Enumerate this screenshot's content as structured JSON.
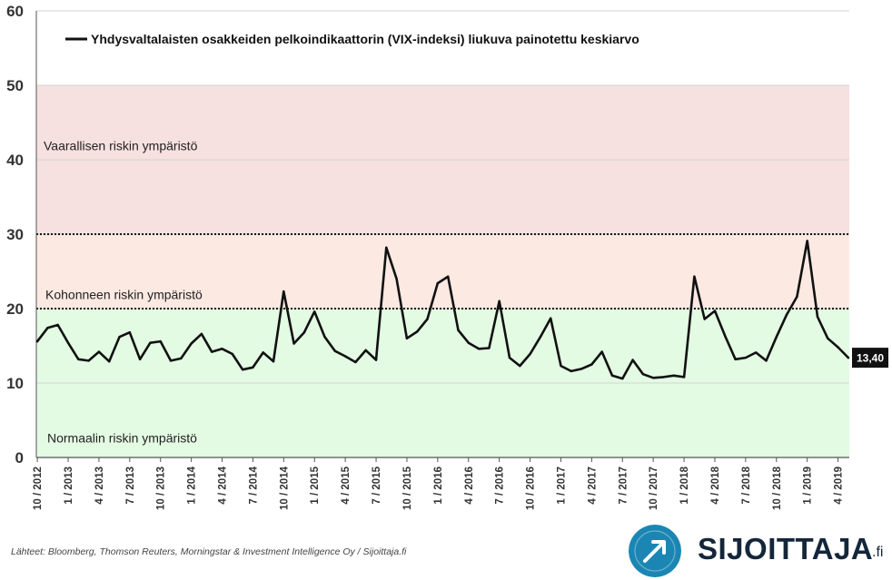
{
  "chart_data": {
    "type": "line",
    "title": "",
    "xlabel": "",
    "ylabel": "",
    "ylim": [
      0,
      60
    ],
    "yticks": [
      0,
      10,
      20,
      30,
      40,
      50,
      60
    ],
    "xlim": [
      "2012-10",
      "2019-05"
    ],
    "xtick_labels": [
      "10 / 2012",
      "1 / 2013",
      "4 / 2013",
      "7 / 2013",
      "10 / 2013",
      "1 / 2014",
      "4 / 2014",
      "7 / 2014",
      "10 / 2014",
      "1 / 2015",
      "4 / 2015",
      "7 / 2015",
      "10 / 2015",
      "1 / 2016",
      "4 / 2016",
      "7 / 2016",
      "10 / 2016",
      "1 / 2017",
      "4 / 2017",
      "7 / 2017",
      "10 / 2017",
      "1 / 2018",
      "4 / 2018",
      "7 / 2018",
      "10 / 2018",
      "1 / 2019",
      "4 / 2019"
    ],
    "legend": {
      "position": "top",
      "entries": [
        "Yhdysvaltalaisten osakkeiden pelkoindikaattorin (VIX-indeksi) liukuva painotettu keskiarvo"
      ]
    },
    "grid": true,
    "zones": [
      {
        "label": "Normaalin riskin ympäristö",
        "from": 0,
        "to": 20,
        "color": "#e3fae3"
      },
      {
        "label": "Kohonneen riskin ympäristö",
        "from": 20,
        "to": 30,
        "color": "#fbe9e2"
      },
      {
        "label": "Vaarallisen riskin ympäristö",
        "from": 30,
        "to": 50,
        "color": "#f7e0e0"
      }
    ],
    "thresholds": [
      20,
      30
    ],
    "last_value_label": "13,40",
    "series": [
      {
        "name": "Yhdysvaltalaisten osakkeiden pelkoindikaattorin (VIX-indeksi) liukuva painotettu keskiarvo",
        "color": "#111111",
        "x": [
          "2012-10",
          "2012-11",
          "2012-12",
          "2013-01",
          "2013-02",
          "2013-03",
          "2013-04",
          "2013-05",
          "2013-06",
          "2013-07",
          "2013-08",
          "2013-09",
          "2013-10",
          "2013-11",
          "2013-12",
          "2014-01",
          "2014-02",
          "2014-03",
          "2014-04",
          "2014-05",
          "2014-06",
          "2014-07",
          "2014-08",
          "2014-09",
          "2014-10",
          "2014-11",
          "2014-12",
          "2015-01",
          "2015-02",
          "2015-03",
          "2015-04",
          "2015-05",
          "2015-06",
          "2015-07",
          "2015-08",
          "2015-09",
          "2015-10",
          "2015-11",
          "2015-12",
          "2016-01",
          "2016-02",
          "2016-03",
          "2016-04",
          "2016-05",
          "2016-06",
          "2016-07",
          "2016-08",
          "2016-09",
          "2016-10",
          "2016-11",
          "2016-12",
          "2017-01",
          "2017-02",
          "2017-03",
          "2017-04",
          "2017-05",
          "2017-06",
          "2017-07",
          "2017-08",
          "2017-09",
          "2017-10",
          "2017-11",
          "2017-12",
          "2018-01",
          "2018-02",
          "2018-03",
          "2018-04",
          "2018-05",
          "2018-06",
          "2018-07",
          "2018-08",
          "2018-09",
          "2018-10",
          "2018-11",
          "2018-12",
          "2019-01",
          "2019-02",
          "2019-03",
          "2019-04",
          "2019-05"
        ],
        "values": [
          15.6,
          17.4,
          17.8,
          15.4,
          13.2,
          13.0,
          14.2,
          12.9,
          16.2,
          16.8,
          13.2,
          15.4,
          15.6,
          13.0,
          13.3,
          15.3,
          16.6,
          14.2,
          14.6,
          13.9,
          11.8,
          12.1,
          14.1,
          12.9,
          22.3,
          15.3,
          16.8,
          19.6,
          16.2,
          14.3,
          13.6,
          12.8,
          14.4,
          13.1,
          28.2,
          24.0,
          16.0,
          16.9,
          18.6,
          23.4,
          24.3,
          17.1,
          15.4,
          14.6,
          14.7,
          21.0,
          13.4,
          12.3,
          13.9,
          16.2,
          18.7,
          12.3,
          11.6,
          11.9,
          12.5,
          14.2,
          11.0,
          10.6,
          13.1,
          11.2,
          10.7,
          10.8,
          11.0,
          10.8,
          24.3,
          18.6,
          19.7,
          16.3,
          13.2,
          13.4,
          14.1,
          13.0,
          16.2,
          19.2,
          21.6,
          29.1,
          18.9,
          16.0,
          14.8,
          13.4
        ]
      }
    ]
  },
  "footer": {
    "source_text": "Lähteet: Bloomberg, Thomson Reuters, Morningstar & Investment Intelligence Oy / Sijoittaja.fi"
  },
  "brand": {
    "name": "SIJOITTAJA",
    "suffix": ".fi",
    "logo_icon": "arrow-up-right-icon",
    "colors": {
      "circle": "#1b86b3",
      "text": "#14263a"
    }
  }
}
